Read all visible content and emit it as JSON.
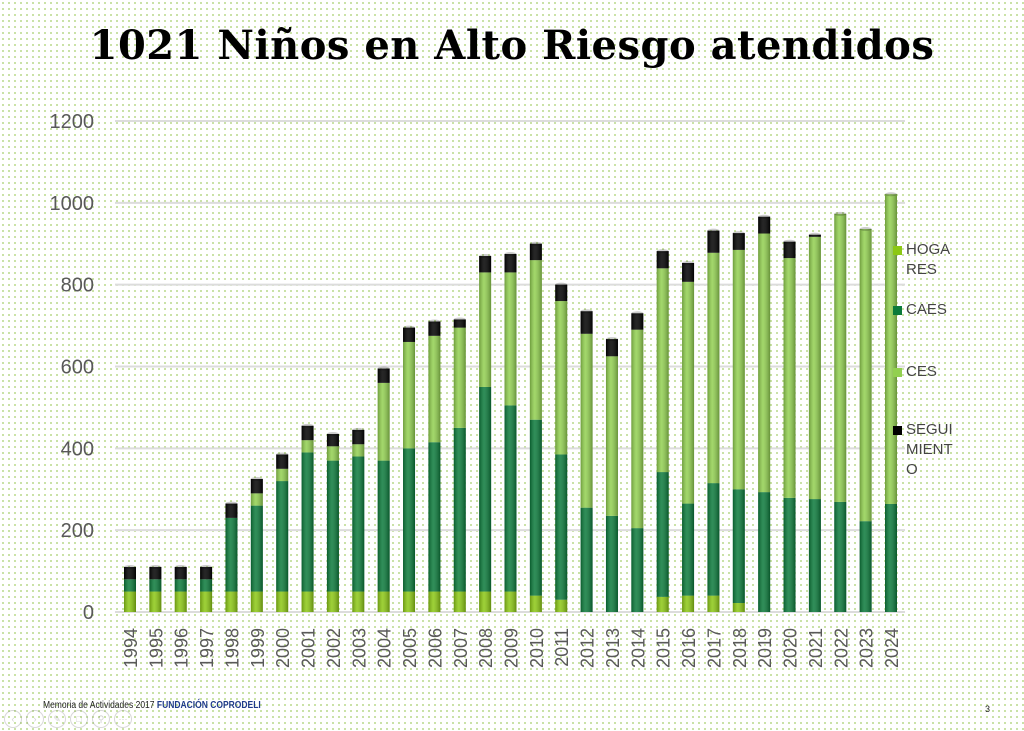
{
  "slide": {
    "footer_text": "Memoria de Actividades 2017",
    "footer_org": "FUNDACIÓN COPRODELI",
    "page_number": "3"
  },
  "chart_data": {
    "type": "bar",
    "stacked": true,
    "title": "1021 Niños en Alto Riesgo atendidos",
    "xlabel": "",
    "ylabel": "",
    "ylim": [
      0,
      1200
    ],
    "yticks": [
      0,
      200,
      400,
      600,
      800,
      1000,
      1200
    ],
    "grid": true,
    "legend_position": "right",
    "categories": [
      "1994",
      "1995",
      "1996",
      "1997",
      "1998",
      "1999",
      "2000",
      "2001",
      "2002",
      "2003",
      "2004",
      "2005",
      "2006",
      "2007",
      "2008",
      "2009",
      "2010",
      "2011",
      "2012",
      "2013",
      "2014",
      "2015",
      "2016",
      "2017",
      "2018",
      "2019",
      "2020",
      "2021",
      "2022",
      "2023",
      "2024"
    ],
    "series": [
      {
        "name": "HOGARES",
        "color": "#8cc814",
        "values": [
          50,
          50,
          50,
          50,
          50,
          50,
          50,
          50,
          50,
          50,
          50,
          50,
          50,
          50,
          50,
          50,
          40,
          30,
          0,
          0,
          0,
          37,
          40,
          40,
          22,
          0,
          0,
          0,
          0,
          0,
          0
        ]
      },
      {
        "name": "CAES",
        "color": "#0b7a3b",
        "values": [
          30,
          30,
          30,
          30,
          180,
          210,
          270,
          340,
          320,
          330,
          320,
          350,
          365,
          400,
          500,
          455,
          430,
          355,
          255,
          235,
          205,
          305,
          225,
          275,
          278,
          293,
          279,
          276,
          269,
          222,
          264
        ]
      },
      {
        "name": "CES",
        "color": "#92d050",
        "values": [
          0,
          0,
          0,
          0,
          0,
          30,
          30,
          30,
          35,
          30,
          190,
          260,
          260,
          245,
          280,
          325,
          390,
          375,
          425,
          390,
          485,
          498,
          542,
          563,
          585,
          632,
          586,
          641,
          704,
          714,
          757
        ]
      },
      {
        "name": "SEGUIMIENTO",
        "color": "#000000",
        "values": [
          30,
          30,
          30,
          30,
          35,
          35,
          35,
          35,
          30,
          35,
          35,
          35,
          35,
          20,
          40,
          45,
          40,
          40,
          55,
          42,
          40,
          42,
          46,
          54,
          41,
          41,
          40,
          5,
          0,
          0,
          0
        ]
      }
    ]
  }
}
